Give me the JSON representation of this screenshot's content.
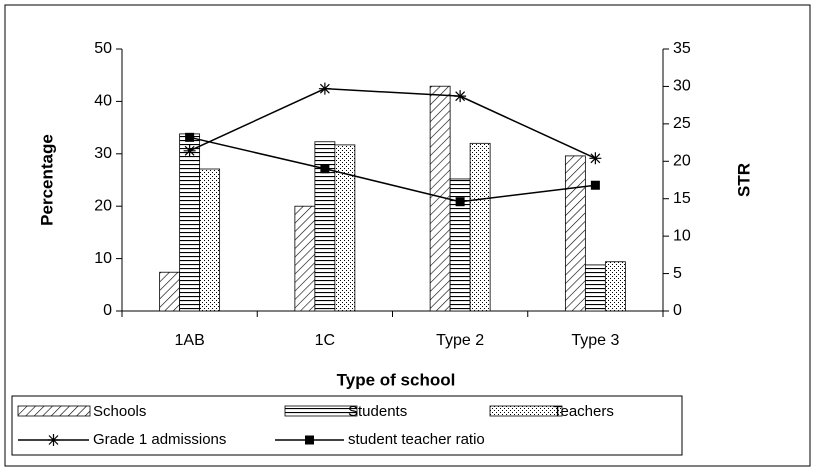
{
  "chart_data": {
    "type": "bar",
    "xlabel": "Type of school",
    "ylabel": "Percentage",
    "y2label": "STR",
    "categories": [
      "1AB",
      "1C",
      "Type 2",
      "Type 3"
    ],
    "ylim": [
      0,
      50
    ],
    "yticks": [
      0,
      10,
      20,
      30,
      40,
      50
    ],
    "y2lim": [
      0,
      35
    ],
    "y2ticks": [
      0,
      5,
      10,
      15,
      20,
      25,
      30,
      35
    ],
    "series": [
      {
        "name": "Schools",
        "type": "bar",
        "color": "#000000",
        "pattern": "diagonal",
        "values": [
          7.4,
          20,
          42.9,
          29.6
        ]
      },
      {
        "name": "Students",
        "type": "bar",
        "color": "#000000",
        "pattern": "horizontal",
        "values": [
          33.8,
          32.3,
          25.2,
          8.8
        ]
      },
      {
        "name": "Teachers",
        "type": "bar",
        "color": "#000000",
        "pattern": "dots",
        "values": [
          27.1,
          31.7,
          32,
          9.4
        ]
      },
      {
        "name": "Grade 1 admissions",
        "type": "line",
        "axis": "y2",
        "color": "#000000",
        "marker": "star",
        "values": [
          21.4,
          29.7,
          28.7,
          20.4
        ]
      },
      {
        "name": "student teacher ratio",
        "type": "line",
        "axis": "y2",
        "color": "#000000",
        "marker": "square",
        "values": [
          23.2,
          19.0,
          14.6,
          16.8
        ]
      }
    ]
  }
}
